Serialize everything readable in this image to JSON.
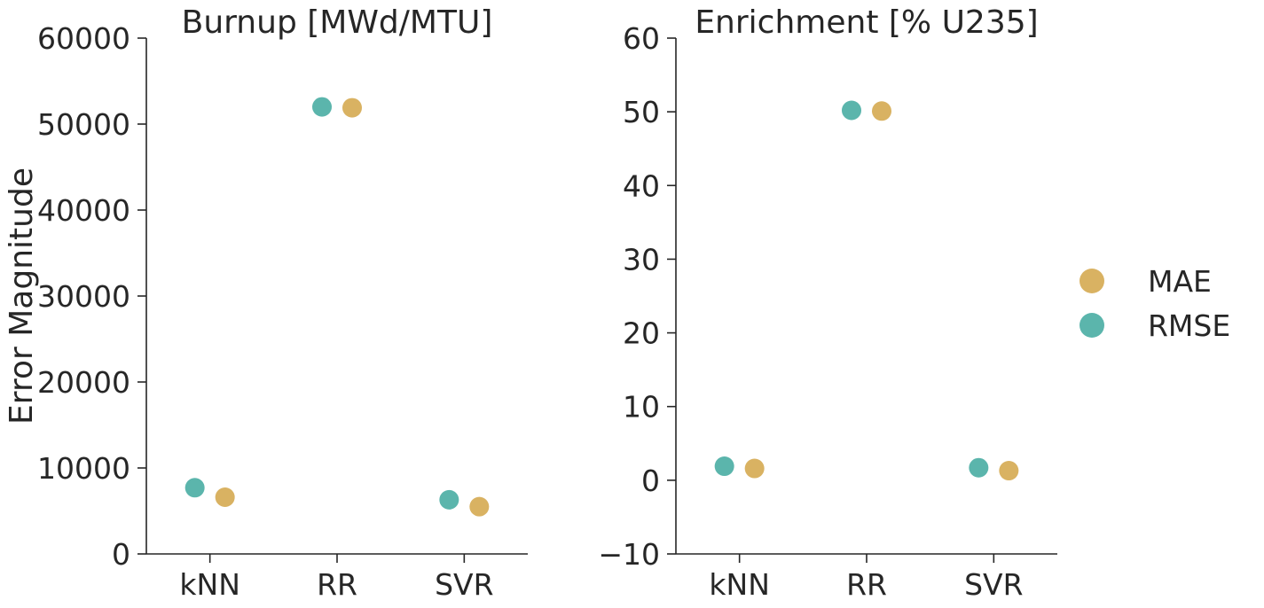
{
  "colors": {
    "MAE": "#D9B262",
    "RMSE": "#5BB5AC",
    "axis": "#262626"
  },
  "legend": {
    "placement": "right",
    "entries": [
      {
        "name": "MAE",
        "color": "#D9B262"
      },
      {
        "name": "RMSE",
        "color": "#5BB5AC"
      }
    ]
  },
  "chart_data": [
    {
      "type": "scatter",
      "title": "Burnup [MWd/MTU]",
      "xlabel": "",
      "ylabel": "Error Magnitude",
      "categories": [
        "kNN",
        "RR",
        "SVR"
      ],
      "ylim": [
        0,
        60000
      ],
      "yticks": [
        0,
        10000,
        20000,
        30000,
        40000,
        50000,
        60000
      ],
      "ytick_labels": [
        "0",
        "10000",
        "20000",
        "30000",
        "40000",
        "50000",
        "60000"
      ],
      "grid": false,
      "series": [
        {
          "name": "MAE",
          "values": [
            6600,
            51900,
            5500
          ]
        },
        {
          "name": "RMSE",
          "values": [
            7700,
            52000,
            6300
          ]
        }
      ]
    },
    {
      "type": "scatter",
      "title": "Enrichment [% U235]",
      "xlabel": "",
      "ylabel": "",
      "categories": [
        "kNN",
        "RR",
        "SVR"
      ],
      "ylim": [
        -10,
        60
      ],
      "yticks": [
        -10,
        0,
        10,
        20,
        30,
        40,
        50,
        60
      ],
      "ytick_labels": [
        "−10",
        "0",
        "10",
        "20",
        "30",
        "40",
        "50",
        "60"
      ],
      "grid": false,
      "series": [
        {
          "name": "MAE",
          "values": [
            1.6,
            50.1,
            1.3
          ]
        },
        {
          "name": "RMSE",
          "values": [
            1.9,
            50.2,
            1.7
          ]
        }
      ]
    }
  ]
}
